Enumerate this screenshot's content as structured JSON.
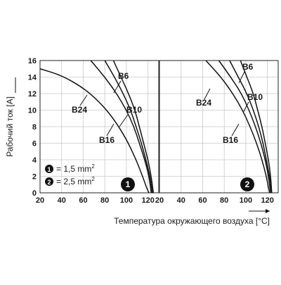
{
  "chart_data": {
    "type": "line",
    "ylabel": "Рабочий ток [A]",
    "xlabel": "Температура окружающего воздуха [°C]",
    "y_ticks": [
      "0",
      "2",
      "4",
      "6",
      "8",
      "10",
      "12",
      "14",
      "16"
    ],
    "ylim": [
      0,
      16
    ],
    "grid": true,
    "legend": {
      "placement": "bottom-left",
      "items": [
        {
          "marker": "1",
          "text": "= 1,5 mm",
          "sup": "2"
        },
        {
          "marker": "2",
          "text": "= 2,5 mm",
          "sup": "2"
        }
      ]
    },
    "panels": [
      {
        "id": "1",
        "x_ticks": [
          "20",
          "40",
          "60",
          "80",
          "100",
          "120"
        ],
        "xlim": [
          20,
          130
        ],
        "series": [
          {
            "name": "B6",
            "x": [
              88,
              95,
              102,
              108,
              112,
              116,
              120,
              123,
              125
            ],
            "y": [
              16,
              14,
              12,
              10,
              8,
              6,
              4,
              2,
              0
            ]
          },
          {
            "name": "B10",
            "x": [
              80,
              89,
              97,
              104,
              109,
              114,
              118,
              122,
              124
            ],
            "y": [
              16,
              14,
              12,
              10,
              8,
              6,
              4,
              2,
              0
            ]
          },
          {
            "name": "B16",
            "x": [
              67,
              80,
              91,
              100,
              107,
              112,
              117,
              121,
              123
            ],
            "y": [
              16,
              14,
              12,
              10,
              8,
              6,
              4,
              2,
              0
            ]
          },
          {
            "name": "B24",
            "x": [
              20,
              40,
              60,
              75,
              88,
              100,
              109,
              115,
              119,
              121
            ],
            "y": [
              15,
              14.2,
              12.7,
              11,
              9,
              6.5,
              4,
              2,
              0.5,
              0
            ]
          }
        ],
        "labels": [
          {
            "series": "B6",
            "text": "B6"
          },
          {
            "series": "B10",
            "text": "B10"
          },
          {
            "series": "B16",
            "text": "B16"
          },
          {
            "series": "B24",
            "text": "B24"
          }
        ]
      },
      {
        "id": "2",
        "x_ticks": [
          "20",
          "40",
          "60",
          "80",
          "100",
          "120"
        ],
        "xlim": [
          20,
          130
        ],
        "series": [
          {
            "name": "B6",
            "x": [
              95,
              101,
              107,
              111,
              115,
              118,
              121,
              123,
              124
            ],
            "y": [
              16,
              14,
              12,
              10,
              8,
              6,
              4,
              2,
              0
            ]
          },
          {
            "name": "B10",
            "x": [
              85,
              93,
              101,
              107,
              112,
              116,
              119,
              122,
              124
            ],
            "y": [
              16,
              14,
              12,
              10,
              8,
              6,
              4,
              2,
              0
            ]
          },
          {
            "name": "B16",
            "x": [
              75,
              86,
              96,
              103,
              109,
              114,
              118,
              121,
              123
            ],
            "y": [
              16,
              14,
              12,
              10,
              8,
              6,
              4,
              2,
              0
            ]
          },
          {
            "name": "B24",
            "x": [
              63,
              77,
              88,
              97,
              104,
              110,
              115,
              119,
              122
            ],
            "y": [
              16,
              14,
              12,
              10,
              8,
              6,
              4,
              2,
              0
            ]
          }
        ],
        "labels": [
          {
            "series": "B6",
            "text": "B6"
          },
          {
            "series": "B10",
            "text": "B10"
          },
          {
            "series": "B16",
            "text": "B16"
          },
          {
            "series": "B24",
            "text": "B24"
          }
        ]
      }
    ]
  }
}
